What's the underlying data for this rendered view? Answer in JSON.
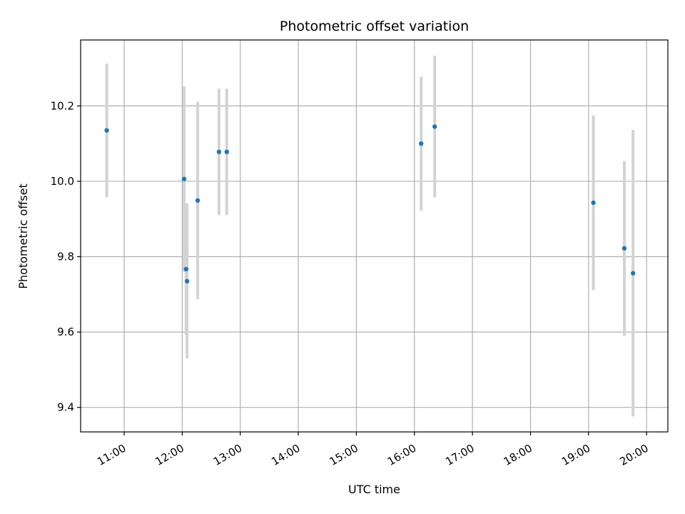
{
  "chart_data": {
    "type": "scatter",
    "title": "Photometric offset variation",
    "xlabel": "UTC time",
    "ylabel": "Photometric offset",
    "xlim": [
      "10:15",
      "20:22"
    ],
    "ylim": [
      9.335,
      10.375
    ],
    "x_ticks": [
      "11:00",
      "12:00",
      "13:00",
      "14:00",
      "15:00",
      "16:00",
      "17:00",
      "18:00",
      "19:00",
      "20:00"
    ],
    "y_ticks": [
      9.4,
      9.6,
      9.8,
      10.0,
      10.2
    ],
    "y_tick_labels": [
      "9.4",
      "9.6",
      "9.8",
      "10.0",
      "10.2"
    ],
    "grid": true,
    "colors": {
      "point": "#1f77b4",
      "errorbar": "#d3d3d3",
      "grid": "#b0b0b0"
    },
    "series": [
      {
        "points": [
          {
            "x": "10:42",
            "y": 10.135,
            "yerr": 0.177
          },
          {
            "x": "12:02",
            "y": 10.006,
            "yerr": 0.246
          },
          {
            "x": "12:04",
            "y": 9.767,
            "yerr": 0.175
          },
          {
            "x": "12:05",
            "y": 9.735,
            "yerr": 0.205
          },
          {
            "x": "12:16",
            "y": 9.949,
            "yerr": 0.262
          },
          {
            "x": "12:38",
            "y": 10.078,
            "yerr": 0.168
          },
          {
            "x": "12:46",
            "y": 10.078,
            "yerr": 0.168
          },
          {
            "x": "16:07",
            "y": 10.1,
            "yerr": 0.178
          },
          {
            "x": "16:21",
            "y": 10.145,
            "yerr": 0.188
          },
          {
            "x": "19:05",
            "y": 9.943,
            "yerr": 0.232
          },
          {
            "x": "19:37",
            "y": 9.822,
            "yerr": 0.232
          },
          {
            "x": "19:46",
            "y": 9.756,
            "yerr": 0.38
          }
        ]
      }
    ]
  }
}
